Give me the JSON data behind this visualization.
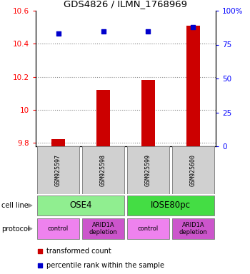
{
  "title": "GDS4826 / ILMN_1768969",
  "samples": [
    "GSM925597",
    "GSM925598",
    "GSM925599",
    "GSM925600"
  ],
  "transformed_counts": [
    9.825,
    10.12,
    10.18,
    10.51
  ],
  "percentile_ranks": [
    83,
    85,
    85,
    88
  ],
  "ylim_left": [
    9.78,
    10.6
  ],
  "ylim_right": [
    0,
    100
  ],
  "yticks_left": [
    9.8,
    10.0,
    10.2,
    10.4,
    10.6
  ],
  "ytick_labels_left": [
    "9.8",
    "10",
    "10.2",
    "10.4",
    "10.6"
  ],
  "yticks_right": [
    0,
    25,
    50,
    75,
    100
  ],
  "ytick_labels_right": [
    "0",
    "25",
    "50",
    "75",
    "100%"
  ],
  "cell_line_groups": [
    {
      "label": "OSE4",
      "cols": [
        0,
        1
      ],
      "color": "#90EE90"
    },
    {
      "label": "IOSE80pc",
      "cols": [
        2,
        3
      ],
      "color": "#44DD44"
    }
  ],
  "protocol_groups": [
    {
      "label": "control",
      "col": 0,
      "color": "#EE82EE"
    },
    {
      "label": "ARID1A\ndepletion",
      "col": 1,
      "color": "#CC55CC"
    },
    {
      "label": "control",
      "col": 2,
      "color": "#EE82EE"
    },
    {
      "label": "ARID1A\ndepletion",
      "col": 3,
      "color": "#CC55CC"
    }
  ],
  "bar_color": "#CC0000",
  "dot_color": "#0000CC",
  "sample_box_color": "#D0D0D0",
  "sample_box_edge": "#888888",
  "legend_red_label": "transformed count",
  "legend_blue_label": "percentile rank within the sample"
}
